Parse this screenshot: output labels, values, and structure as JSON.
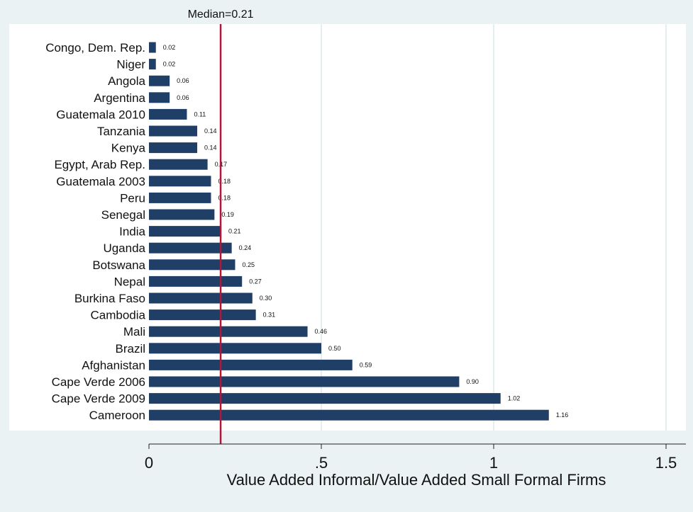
{
  "chart_data": {
    "type": "bar",
    "orientation": "horizontal",
    "categories": [
      "Congo, Dem. Rep.",
      "Niger",
      "Angola",
      "Argentina",
      "Guatemala 2010",
      "Tanzania",
      "Kenya",
      "Egypt, Arab Rep.",
      "Guatemala 2003",
      "Peru",
      "Senegal",
      "India",
      "Uganda",
      "Botswana",
      "Nepal",
      "Burkina Faso",
      "Cambodia",
      "Mali",
      "Brazil",
      "Afghanistan",
      "Cape Verde 2006",
      "Cape Verde 2009",
      "Cameroon"
    ],
    "values": [
      0.02,
      0.02,
      0.06,
      0.06,
      0.11,
      0.14,
      0.14,
      0.17,
      0.18,
      0.18,
      0.19,
      0.21,
      0.24,
      0.25,
      0.27,
      0.3,
      0.31,
      0.46,
      0.5,
      0.59,
      0.9,
      1.02,
      1.16
    ],
    "value_labels": [
      "0.02",
      "0.02",
      "0.06",
      "0.06",
      "0.11",
      "0.14",
      "0.14",
      "0.17",
      "0.18",
      "0.18",
      "0.19",
      "0.21",
      "0.24",
      "0.25",
      "0.27",
      "0.30",
      "0.31",
      "0.46",
      "0.50",
      "0.59",
      "0.90",
      "1.02",
      "1.16"
    ],
    "title": "",
    "xlabel": "Value Added Informal/Value Added Small Formal Firms",
    "ylabel": "",
    "xlim": [
      0,
      1.5
    ],
    "xticks": [
      0,
      0.5,
      1,
      1.5
    ],
    "xtick_labels": [
      "0",
      ".5",
      "1",
      "1.5"
    ],
    "grid": true,
    "reference_line": {
      "value": 0.21,
      "label": "Median=0.21"
    },
    "colors": {
      "bar": "#1f3f66",
      "reference_line": "#b0173a",
      "plot_background": "#ffffff",
      "outer_background": "#eaf2f3",
      "grid": "#e6eff0"
    }
  }
}
